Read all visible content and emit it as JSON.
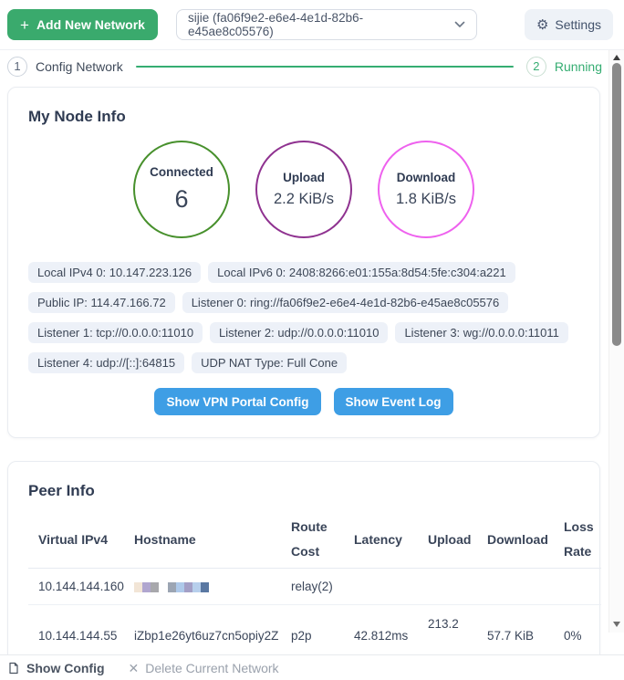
{
  "topbar": {
    "add_network_label": "Add New Network",
    "network_select_value": "sijie (fa06f9e2-e6e4-4e1d-82b6-e45ae8c05576)",
    "settings_label": "Settings"
  },
  "steps": {
    "step1_number": "1",
    "step1_label": "Config Network",
    "step2_number": "2",
    "step2_label": "Running"
  },
  "node_info": {
    "title": "My Node Info",
    "stats": [
      {
        "label": "Connected",
        "value": "6"
      },
      {
        "label": "Upload",
        "value": "2.2 KiB/s"
      },
      {
        "label": "Download",
        "value": "1.8 KiB/s"
      }
    ],
    "tags": [
      "Local IPv4 0: 10.147.223.126",
      "Local IPv6 0: 2408:8266:e01:155a:8d54:5fe:c304:a221",
      "Public IP: 114.47.166.72",
      "Listener 0: ring://fa06f9e2-e6e4-4e1d-82b6-e45ae8c05576",
      "Listener 1: tcp://0.0.0.0:11010",
      "Listener 2: udp://0.0.0.0:11010",
      "Listener 3: wg://0.0.0.0:11011",
      "Listener 4: udp://[::]:64815",
      "UDP NAT Type: Full Cone"
    ],
    "vpn_portal_button": "Show VPN Portal Config",
    "event_log_button": "Show Event Log"
  },
  "peer_info": {
    "title": "Peer Info",
    "columns": [
      "Virtual IPv4",
      "Hostname",
      "Route Cost",
      "Latency",
      "Upload",
      "Download",
      "Loss Rate"
    ],
    "rows": [
      {
        "virtual_ipv4": "10.144.144.160",
        "hostname": "",
        "route_cost": "relay(2)",
        "latency": "",
        "upload": "",
        "download": "",
        "loss_rate": ""
      },
      {
        "virtual_ipv4": "10.144.144.55",
        "hostname": "iZbp1e26yt6uz7cn5opiy2Z",
        "route_cost": "p2p",
        "latency": "42.812ms",
        "upload": "213.2",
        "download": "57.7 KiB",
        "loss_rate": "0%"
      }
    ],
    "redacted_mosaic": [
      [
        "#f2e5d6",
        "#b0a6cf",
        "#a8a8ac"
      ],
      [
        "#9ca5b3",
        "#aec9ea",
        "#a39fc6",
        "#b7cfec",
        "#5a78a2"
      ]
    ]
  },
  "footer": {
    "show_config_label": "Show Config",
    "delete_label": "Delete Current Network"
  },
  "icons": {
    "plus": "+",
    "gear": "⚙",
    "close": "✕"
  },
  "colors": {
    "add_network_green": "#3aaa6d",
    "action_blue": "#3e9ee5",
    "step_green": "#35ad72",
    "connected_green": "#47902c",
    "upload_purple": "#8f3290",
    "download_magenta": "#ee61ee",
    "tag_bg": "#edf1f8"
  }
}
